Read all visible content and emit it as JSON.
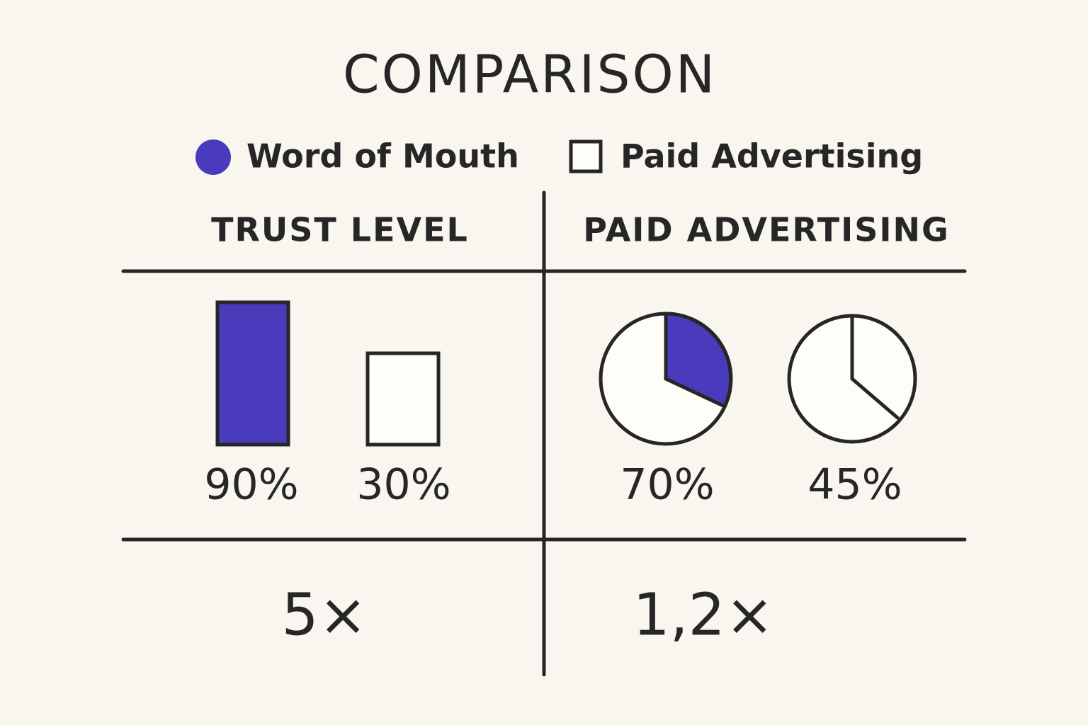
{
  "title": "COMPARISON",
  "legend": [
    {
      "label": "Word of Mouth",
      "color": "#4a3bbd"
    },
    {
      "label": "Paid Advertising"
    }
  ],
  "panels": [
    {
      "heading": "TRUST LEVEL",
      "items": [
        "90%",
        "30%"
      ],
      "footer": "5×"
    },
    {
      "heading": "PAID ADVERTISING",
      "items": [
        "70%",
        "45%"
      ],
      "footer": "1,2×"
    }
  ]
}
